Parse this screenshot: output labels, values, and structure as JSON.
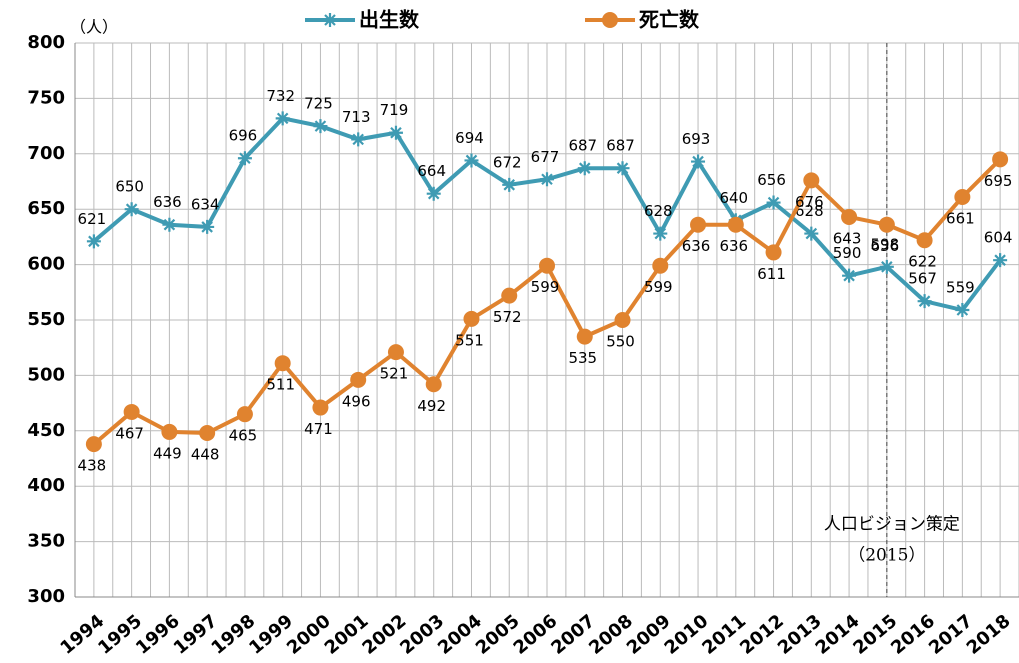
{
  "chart_data": {
    "type": "line",
    "y_unit": "（人）",
    "categories": [
      "1994",
      "1995",
      "1996",
      "1997",
      "1998",
      "1999",
      "2000",
      "2001",
      "2002",
      "2003",
      "2004",
      "2005",
      "2006",
      "2007",
      "2008",
      "2009",
      "2010",
      "2011",
      "2012",
      "2013",
      "2014",
      "2015",
      "2016",
      "2017",
      "2018"
    ],
    "series": [
      {
        "name": "出生数",
        "color": "#3f9bb3",
        "marker": "star",
        "values": [
          621,
          650,
          636,
          634,
          696,
          732,
          725,
          713,
          719,
          664,
          694,
          672,
          677,
          687,
          687,
          628,
          693,
          640,
          656,
          628,
          590,
          598,
          567,
          559,
          604
        ]
      },
      {
        "name": "死亡数",
        "color": "#e0832f",
        "marker": "circle",
        "values": [
          438,
          467,
          449,
          448,
          465,
          511,
          471,
          496,
          521,
          492,
          551,
          572,
          599,
          535,
          550,
          599,
          636,
          636,
          611,
          676,
          643,
          636,
          622,
          661,
          695
        ]
      }
    ],
    "ylim": [
      300,
      800
    ],
    "yticks": [
      300,
      350,
      400,
      450,
      500,
      550,
      600,
      650,
      700,
      750,
      800
    ],
    "grid": true,
    "annotation": {
      "lines": [
        "人口ビジョン策定",
        "（2015）"
      ],
      "x": "2015"
    }
  }
}
